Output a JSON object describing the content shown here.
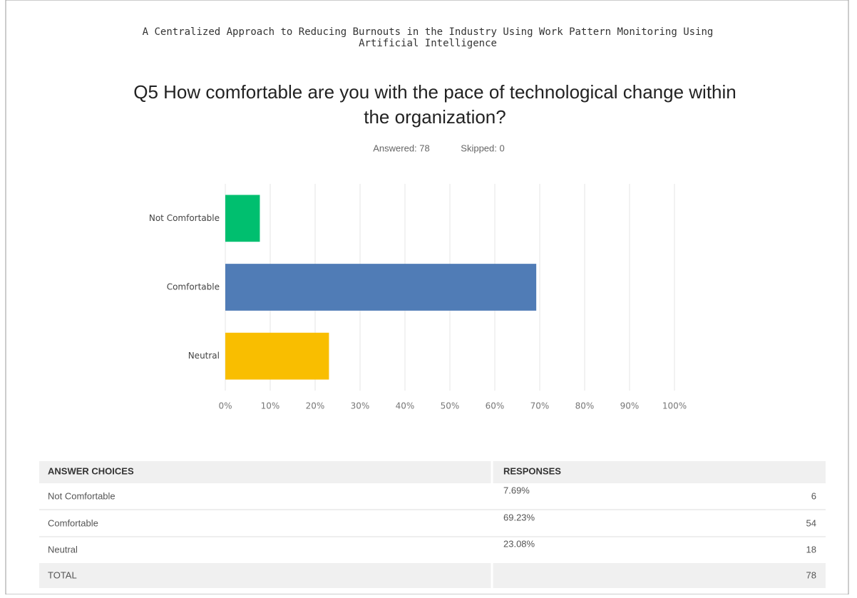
{
  "header": {
    "title": "A Centralized Approach to Reducing Burnouts in the Industry Using Work Pattern Monitoring Using",
    "title_line2": "Artificial Intelligence"
  },
  "chart_data": {
    "type": "bar",
    "orientation": "horizontal",
    "title": "Q5 How comfortable are you with the pace of technological change within",
    "title_line2": "the organization?",
    "answered": "Answered: 78",
    "skipped": "Skipped: 0",
    "categories": [
      "Not Comfortable",
      "Comfortable",
      "Neutral"
    ],
    "values": [
      7.69,
      69.23,
      23.08
    ],
    "colors": [
      "#00bf6f",
      "#507cb6",
      "#f9be00"
    ],
    "xlim": [
      0,
      100
    ],
    "xticks": [
      {
        "value": 0,
        "label": "0%"
      },
      {
        "value": 10,
        "label": "10%"
      },
      {
        "value": 20,
        "label": "20%"
      },
      {
        "value": 30,
        "label": "30%"
      },
      {
        "value": 40,
        "label": "40%"
      },
      {
        "value": 50,
        "label": "50%"
      },
      {
        "value": 60,
        "label": "60%"
      },
      {
        "value": 70,
        "label": "70%"
      },
      {
        "value": 80,
        "label": "80%"
      },
      {
        "value": 90,
        "label": "90%"
      },
      {
        "value": 100,
        "label": "100%"
      }
    ],
    "grid": true
  },
  "table": {
    "header": [
      "ANSWER CHOICES",
      "RESPONSES"
    ],
    "rows": [
      [
        "Not Comfortable",
        "7.69%",
        "6"
      ],
      [
        "Comfortable",
        "69.23%",
        "54"
      ],
      [
        "Neutral",
        "23.08%",
        "18"
      ]
    ],
    "total": [
      "TOTAL",
      "78"
    ]
  }
}
